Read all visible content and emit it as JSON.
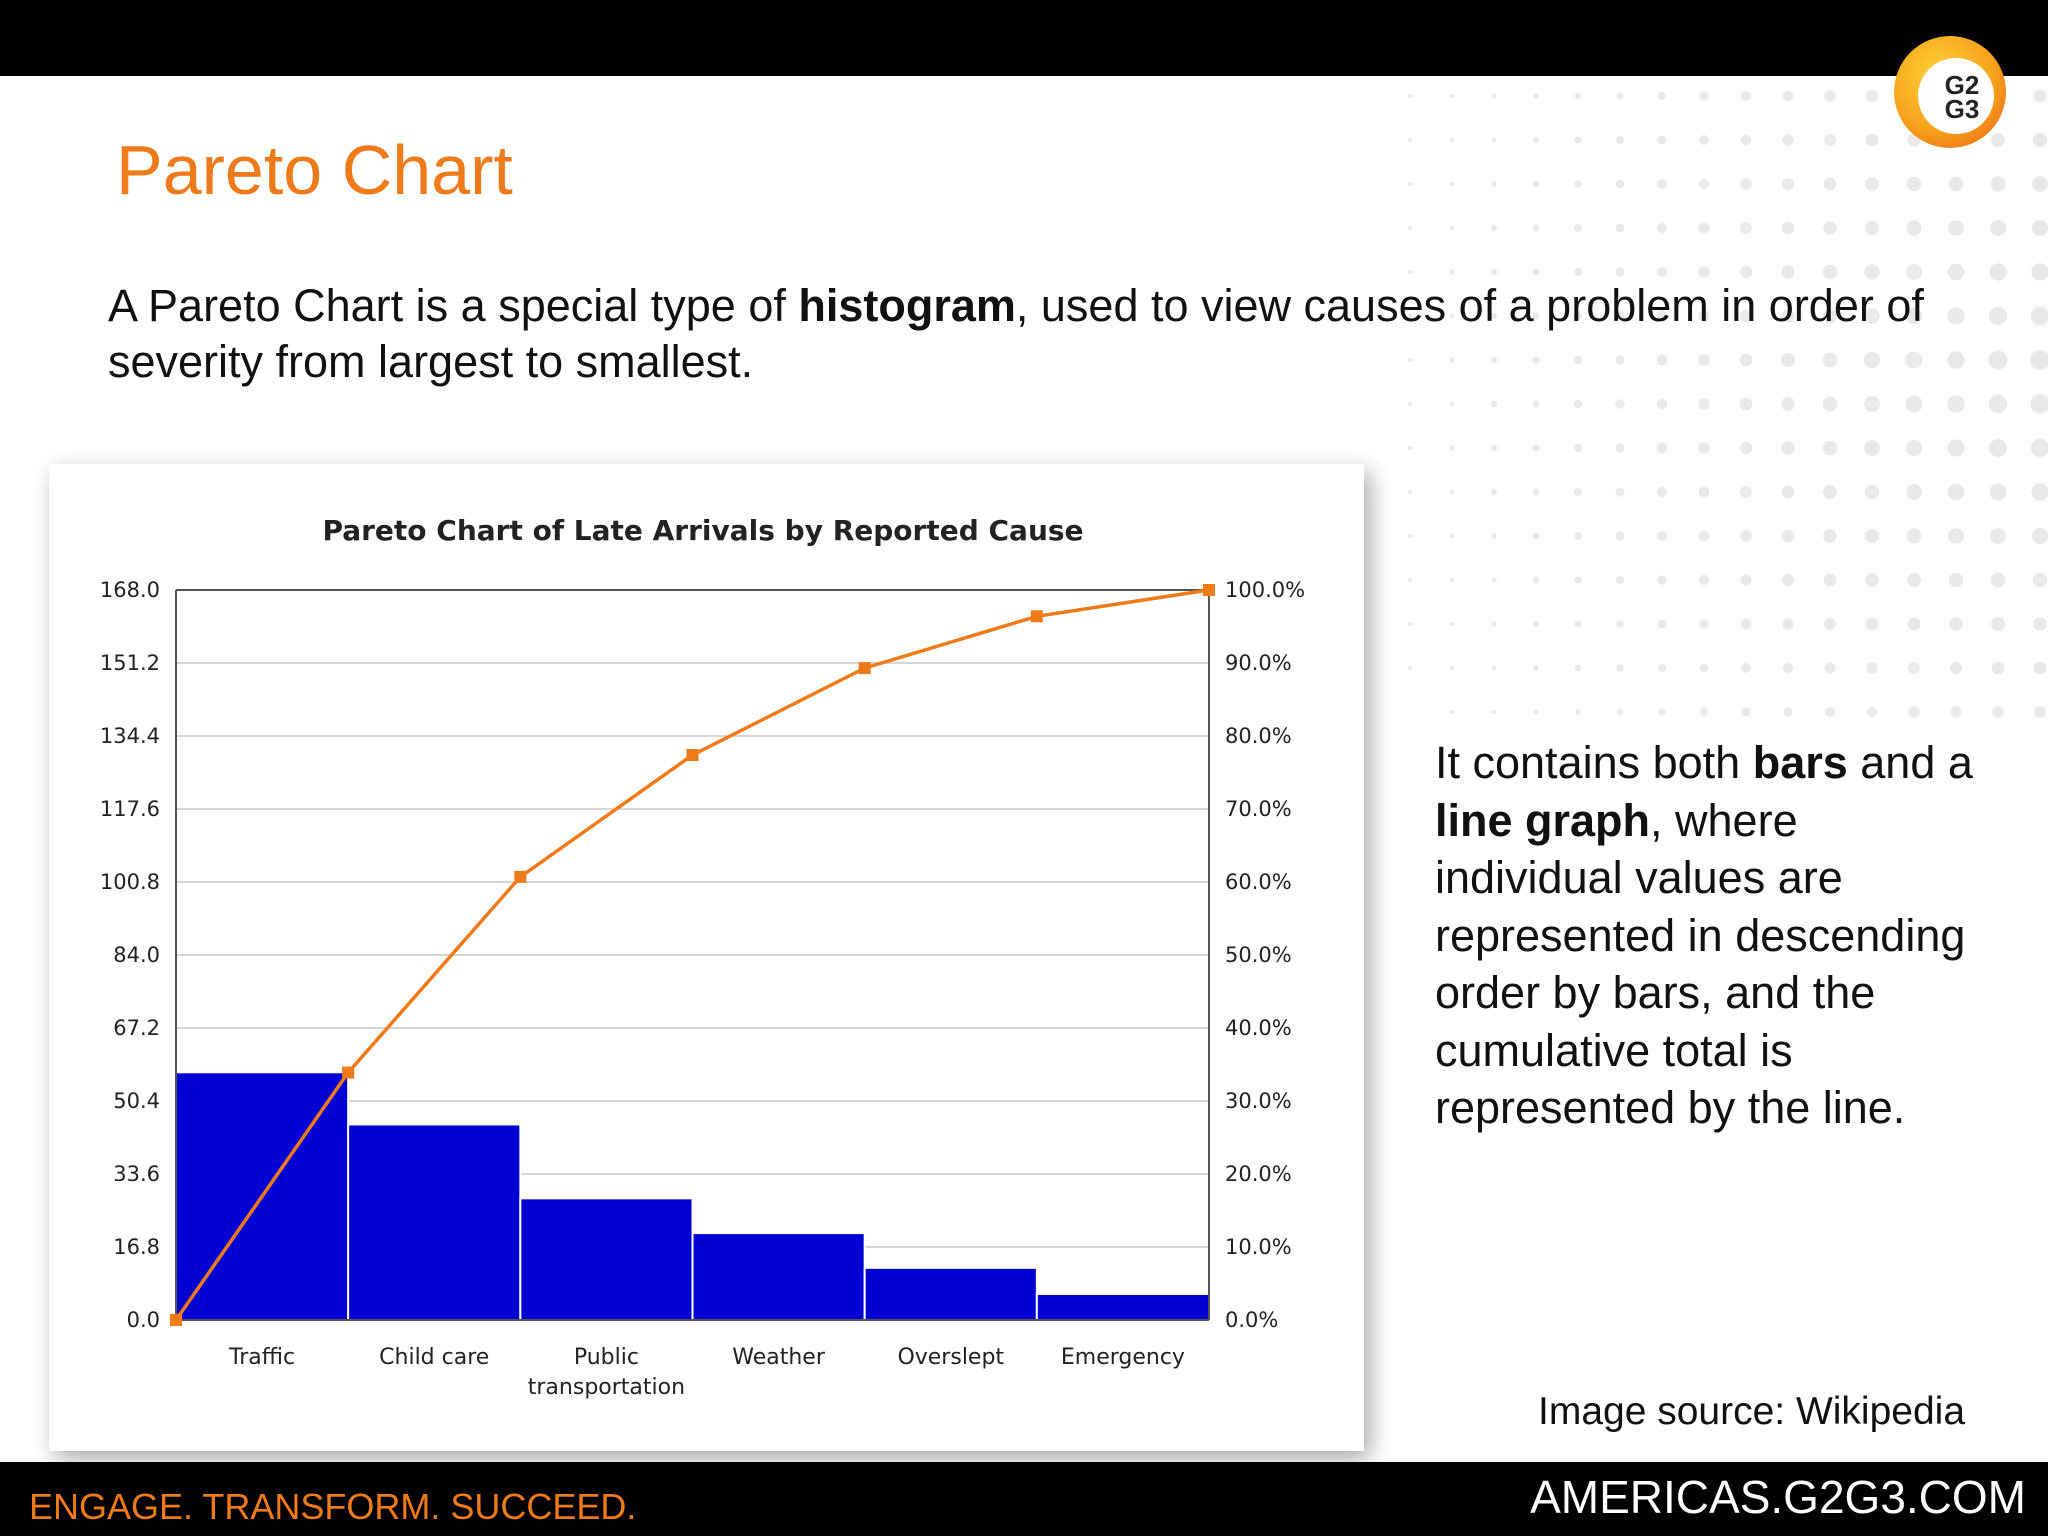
{
  "slide": {
    "title": "Pareto Chart",
    "intro_pre": "A Pareto Chart is a special type of ",
    "intro_bold": "histogram",
    "intro_post": ", used to view causes of a problem in order of severity from largest to smallest.",
    "side_1": "It contains both ",
    "side_bars": "bars",
    "side_2": " and a ",
    "side_line": "line graph",
    "side_3": ", where individual values are represented in descending order by bars, and the cumulative total is represented by the line.",
    "source": "Image source:  Wikipedia",
    "tagline": "ENGAGE. TRANSFORM. SUCCEED.",
    "site": "AMERICAS.G2G3.COM"
  },
  "logo": {
    "line1": "G2",
    "line2": "G3"
  },
  "colors": {
    "accent": "#ef7a1a",
    "bar": "#0000d4",
    "line": "#ef7a1a",
    "grid": "#c8c8c8"
  },
  "chart_data": {
    "type": "bar",
    "title": "Pareto Chart of Late Arrivals by Reported Cause",
    "categories": [
      "Traffic",
      "Child care",
      "Public transportation",
      "Weather",
      "Overslept",
      "Emergency"
    ],
    "category_lines": [
      [
        "Traffic"
      ],
      [
        "Child care"
      ],
      [
        "Public",
        "transportation"
      ],
      [
        "Weather"
      ],
      [
        "Overslept"
      ],
      [
        "Emergency"
      ]
    ],
    "values": [
      57,
      45,
      28,
      20,
      12,
      6
    ],
    "cumulative_percent": [
      0,
      33.9,
      60.7,
      77.4,
      89.3,
      96.4,
      100
    ],
    "ylim": [
      0,
      168
    ],
    "y_ticks": [
      "0.0",
      "16.8",
      "33.6",
      "50.4",
      "67.2",
      "84.0",
      "100.8",
      "117.6",
      "134.4",
      "151.2",
      "168.0"
    ],
    "y2lim": [
      0,
      100
    ],
    "y2_ticks": [
      "0.0%",
      "10.0%",
      "20.0%",
      "30.0%",
      "40.0%",
      "50.0%",
      "60.0%",
      "70.0%",
      "80.0%",
      "90.0%",
      "100.0%"
    ],
    "grid": true
  }
}
